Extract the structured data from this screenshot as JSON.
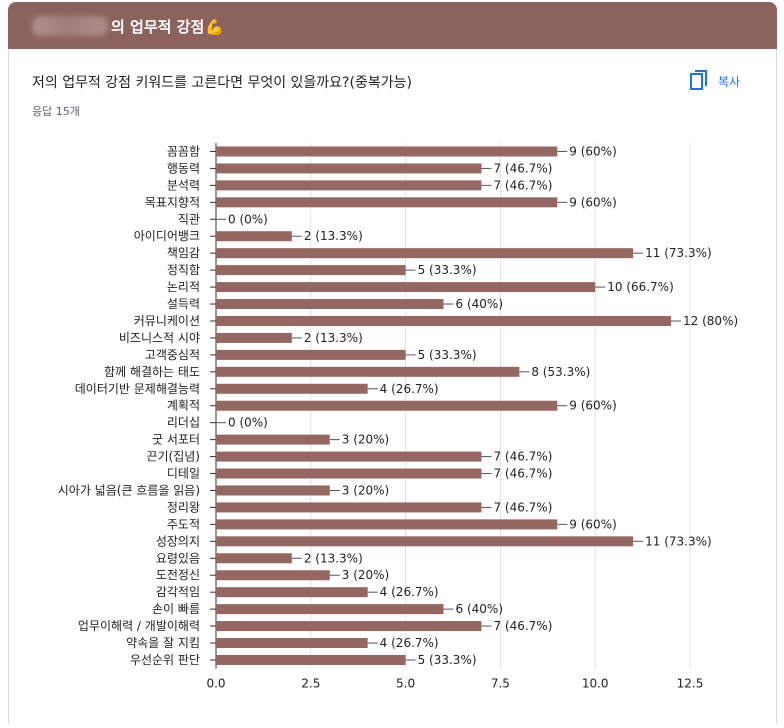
{
  "header": {
    "title": "의 업무적 강점",
    "emoji": "💪"
  },
  "question": {
    "title": "저의 업무적 강점 키워드를 고른다면 무엇이 있을까요?(중복가능)",
    "responses": "응답 15개",
    "copy_label": "복사"
  },
  "colors": {
    "header_bg": "#8b625e",
    "bar": "#956762",
    "accent": "#1a73e8"
  },
  "icons": {
    "copy": "copy-icon",
    "header_emoji": "flexed-biceps-icon"
  },
  "chart_data": {
    "type": "bar",
    "orientation": "horizontal",
    "categories": [
      "꼼꼼함",
      "행동력",
      "분석력",
      "목표지향적",
      "직관",
      "아이디어뱅크",
      "책임감",
      "정직함",
      "논리적",
      "설득력",
      "커뮤니케이션",
      "비즈니스적 시야",
      "고객중심적",
      "함께 해결하는 태도",
      "데이터기반 문제해결능력",
      "계획적",
      "리더십",
      "굿 서포터",
      "끈기(집념)",
      "디테일",
      "시아가 넓음(큰 흐름을 읽음)",
      "정리왕",
      "주도적",
      "성장의지",
      "요령있음",
      "도전정신",
      "감각적임",
      "손이 빠름",
      "업무이해력 / 개발이해력",
      "약속을 잘 지킴",
      "우선순위 판단"
    ],
    "values": [
      9,
      7,
      7,
      9,
      0,
      2,
      11,
      5,
      10,
      6,
      12,
      2,
      5,
      8,
      4,
      9,
      0,
      3,
      7,
      7,
      3,
      7,
      9,
      11,
      2,
      3,
      4,
      6,
      7,
      4,
      5
    ],
    "labels": [
      "9 (60%)",
      "7 (46.7%)",
      "7 (46.7%)",
      "9 (60%)",
      "0 (0%)",
      "2 (13.3%)",
      "11 (73.3%)",
      "5 (33.3%)",
      "10 (66.7%)",
      "6 (40%)",
      "12 (80%)",
      "2 (13.3%)",
      "5 (33.3%)",
      "8 (53.3%)",
      "4 (26.7%)",
      "9 (60%)",
      "0 (0%)",
      "3 (20%)",
      "7 (46.7%)",
      "7 (46.7%)",
      "3 (20%)",
      "7 (46.7%)",
      "9 (60%)",
      "11 (73.3%)",
      "2 (13.3%)",
      "3 (20%)",
      "4 (26.7%)",
      "6 (40%)",
      "7 (46.7%)",
      "4 (26.7%)",
      "5 (33.3%)"
    ],
    "xlim": [
      0,
      12.5
    ],
    "xticks": [
      0,
      2.5,
      5,
      7.5,
      10,
      12.5
    ],
    "xtick_labels": [
      "0.0",
      "2.5",
      "5.0",
      "7.5",
      "10.0",
      "12.5"
    ],
    "grid": true
  }
}
